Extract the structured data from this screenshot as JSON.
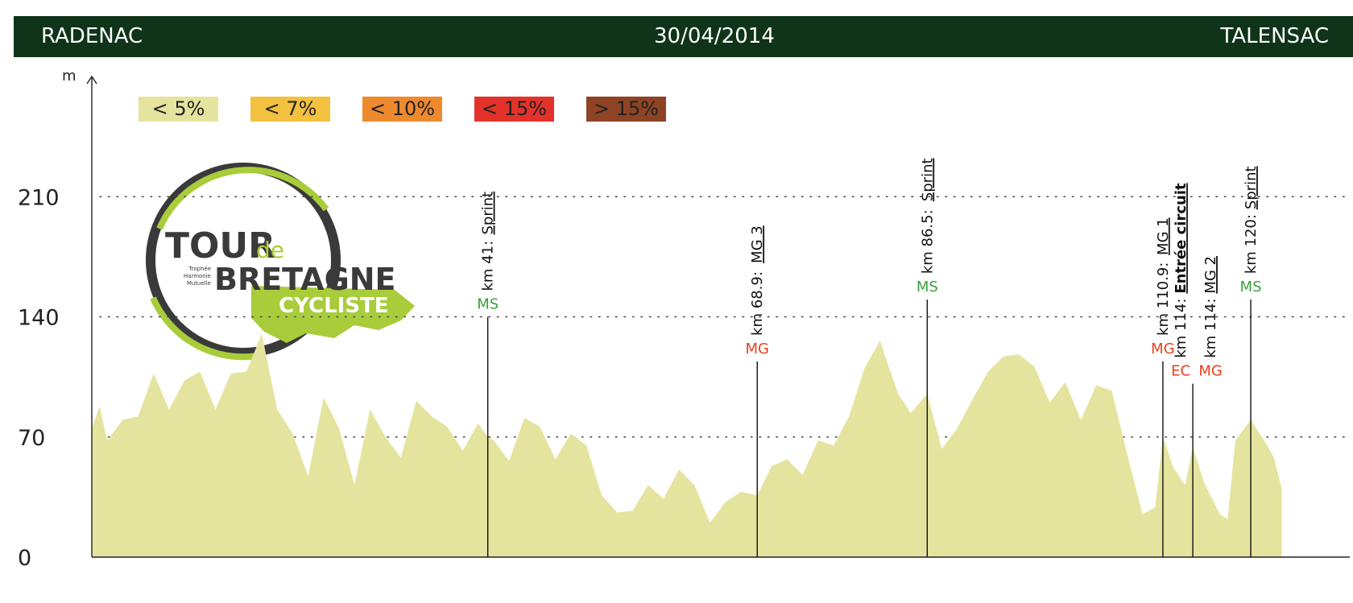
{
  "header": {
    "start": "RADENAC",
    "date": "30/04/2014",
    "finish": "TALENSAC"
  },
  "logo": {
    "line1": "TOUR",
    "line1b": "de",
    "line2": "BRETAGNE",
    "line3": "CYCLISTE",
    "tagline": [
      "Trophée",
      "Harmonie",
      "Mutuelle"
    ]
  },
  "colors": {
    "header_bg": "#0f341a",
    "profile_fill": "#e4e49f",
    "ms": "#3aa13a",
    "mg": "#e8401c",
    "ec": "#e8401c",
    "logo_green": "#a9cc3b",
    "logo_dark": "#3a3a3a"
  },
  "chart_data": {
    "type": "area",
    "title": "",
    "ylabel": "m",
    "xlim": [
      0,
      127
    ],
    "ylim": [
      0,
      280
    ],
    "yticks": [
      0,
      70,
      140,
      210
    ],
    "ytick_labels": [
      "0",
      "70",
      "140",
      "210"
    ],
    "grid_lines": [
      70,
      140,
      210
    ],
    "legend": {
      "placement": "top-left",
      "items": [
        {
          "label": "< 5%",
          "color": "#e4e49f"
        },
        {
          "label": "< 7%",
          "color": "#f2c13f"
        },
        {
          "label": "< 10%",
          "color": "#ee8a2e"
        },
        {
          "label": "< 15%",
          "color": "#e3322a"
        },
        {
          "label": "> 15%",
          "color": "#8e4424"
        }
      ]
    },
    "profile_km": [
      0,
      0.8,
      1.6,
      3.2,
      4.8,
      6.4,
      8,
      9.6,
      11.2,
      12.8,
      14.4,
      16,
      17.6,
      19.2,
      20.8,
      22.4,
      24,
      25.6,
      27.2,
      28.8,
      30.4,
      32,
      33.6,
      35.2,
      36.8,
      38.4,
      40,
      41,
      41.6,
      43.2,
      44.8,
      46.4,
      48,
      49.6,
      51.2,
      52.8,
      54.4,
      56,
      57.6,
      59.2,
      60.8,
      62.4,
      64,
      65.6,
      67.2,
      68.9,
      70.4,
      72,
      73.6,
      75.2,
      76.8,
      78.4,
      80,
      81.6,
      82.7,
      83.5,
      84.8,
      86.5,
      88,
      89.6,
      91.2,
      92.8,
      94.4,
      96,
      97.6,
      99.2,
      100.8,
      102.4,
      104,
      105.6,
      107.2,
      108.8,
      110.1,
      110.9,
      112,
      113.2,
      114,
      115.2,
      116.8,
      117.6,
      118.4,
      120,
      121.6,
      122.4,
      123.2
    ],
    "profile_alt": [
      75,
      88,
      68,
      80,
      82,
      107,
      86,
      103,
      108,
      86,
      107,
      108,
      130,
      86,
      72,
      47,
      93,
      75,
      42,
      86,
      70,
      58,
      91,
      82,
      76,
      62,
      78,
      70,
      68,
      56,
      81,
      76,
      57,
      72,
      65,
      36,
      26,
      27,
      42,
      34,
      51,
      42,
      20,
      32,
      38,
      36,
      53,
      57,
      48,
      68,
      65,
      82,
      110,
      126,
      108,
      95,
      84,
      95,
      63,
      75,
      92,
      108,
      117,
      118,
      111,
      90,
      102,
      80,
      100,
      97,
      60,
      25,
      29,
      70,
      52,
      42,
      64,
      43,
      25,
      22,
      68,
      80,
      66,
      58,
      40
    ],
    "markers": [
      {
        "km": 41,
        "alt": 140,
        "type": "MS",
        "label_km": "km 41:",
        "label_name": "Sprint",
        "name_bold": false
      },
      {
        "km": 68.9,
        "alt": 114,
        "type": "MG",
        "label_km": "km 68.9:",
        "label_name": "MG 3",
        "name_bold": false
      },
      {
        "km": 86.5,
        "alt": 150,
        "type": "MS",
        "label_km": "km 86.5:",
        "label_name": "Sprint",
        "name_bold": false
      },
      {
        "km": 110.9,
        "alt": 114,
        "type": "MG",
        "label_km": "km 110.9:",
        "label_name": "MG 1",
        "name_bold": false
      },
      {
        "km": 114,
        "alt": 101,
        "type": "EC",
        "label_km": "km 114:",
        "label_name": "Entrée circuit",
        "name_bold": true
      },
      {
        "km": 114,
        "alt": 101,
        "type": "MG",
        "label_km": "km 114:",
        "label_name": "MG 2",
        "name_bold": false
      },
      {
        "km": 120,
        "alt": 150,
        "type": "MS",
        "label_km": "km 120:",
        "label_name": "Sprint",
        "name_bold": false
      }
    ]
  }
}
